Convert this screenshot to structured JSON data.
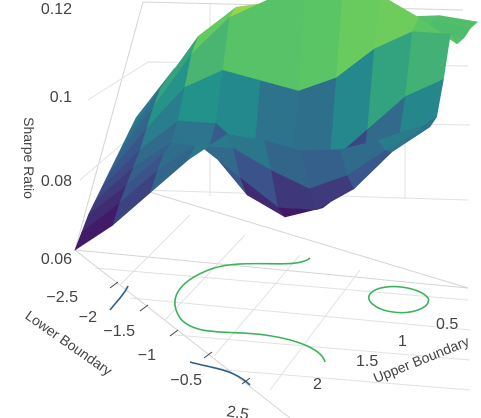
{
  "chart_data": {
    "type": "surface",
    "z_title": "Sharpe Ratio",
    "x_title": "Lower Boundary",
    "y_title": "Upper Boundary",
    "z_ticks": [
      "0.06",
      "0.08",
      "0.1",
      "0.12"
    ],
    "z_tick_values": [
      0.06,
      0.08,
      0.1,
      0.12
    ],
    "x_ticks": [
      "−2.5",
      "−2",
      "−1.5",
      "−1",
      "−0.5",
      "2.5"
    ],
    "y_ticks": [
      "0.5",
      "1",
      "1.5",
      "2"
    ],
    "z_range": [
      0.06,
      0.12
    ],
    "lower_boundary_range": [
      -2.5,
      0.0
    ],
    "upper_boundary_range": [
      0.0,
      2.5
    ],
    "colorscale": "viridis",
    "colors": {
      "low": "#440154",
      "mid": "#21918c",
      "high": "#fde725",
      "contour": "#3bb35a",
      "contour_dark": "#2c5f8a"
    },
    "surface_heights": [
      [
        0.06,
        0.066,
        0.074,
        0.082,
        0.088,
        0.086,
        0.083,
        0.083,
        0.085,
        0.088
      ],
      [
        0.063,
        0.07,
        0.078,
        0.084,
        0.083,
        0.077,
        0.072,
        0.075,
        0.081,
        0.086
      ],
      [
        0.066,
        0.073,
        0.081,
        0.082,
        0.074,
        0.066,
        0.065,
        0.07,
        0.079,
        0.085
      ],
      [
        0.068,
        0.076,
        0.082,
        0.08,
        0.068,
        0.062,
        0.064,
        0.071,
        0.08,
        0.086
      ],
      [
        0.07,
        0.079,
        0.086,
        0.085,
        0.076,
        0.07,
        0.074,
        0.082,
        0.09,
        0.094
      ],
      [
        0.072,
        0.083,
        0.093,
        0.097,
        0.094,
        0.091,
        0.094,
        0.101,
        0.105,
        0.104
      ],
      [
        0.074,
        0.087,
        0.1,
        0.109,
        0.113,
        0.115,
        0.116,
        0.113,
        0.107,
        0.1
      ],
      [
        0.076,
        0.09,
        0.103,
        0.11,
        0.111,
        0.11,
        0.108,
        0.104,
        0.101,
        0.1
      ],
      [
        0.078,
        0.091,
        0.102,
        0.104,
        0.101,
        0.099,
        0.099,
        0.101,
        0.103,
        0.101
      ],
      [
        0.08,
        0.092,
        0.101,
        0.101,
        0.097,
        0.096,
        0.099,
        0.103,
        0.103,
        0.101
      ]
    ]
  }
}
